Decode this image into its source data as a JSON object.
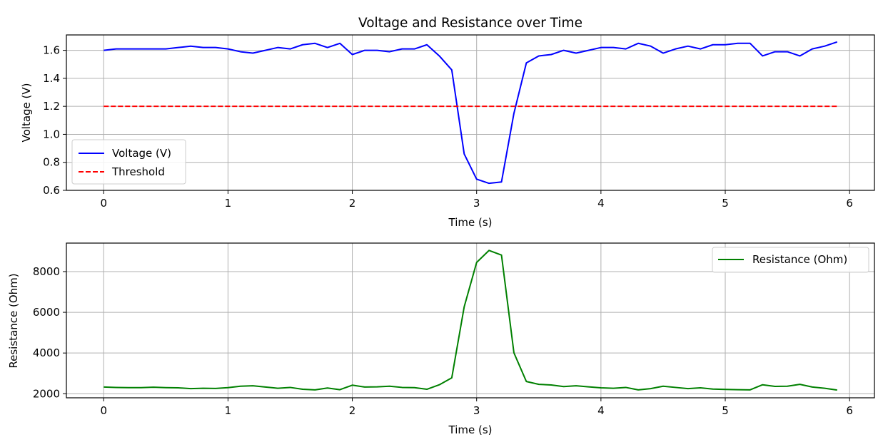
{
  "chart_data": [
    {
      "type": "line",
      "title": "Voltage and Resistance over Time",
      "xlabel": "Time (s)",
      "ylabel": "Voltage (V)",
      "xlim": [
        -0.3,
        6.2
      ],
      "ylim": [
        0.6,
        1.71
      ],
      "xticks": [
        0,
        1,
        2,
        3,
        4,
        5,
        6
      ],
      "yticks": [
        0.6,
        0.8,
        1.0,
        1.2,
        1.4,
        1.6
      ],
      "ytick_labels": [
        "0.6",
        "0.8",
        "1.0",
        "1.2",
        "1.4",
        "1.6"
      ],
      "grid": true,
      "legend_position": "lower-left",
      "x": [
        0.0,
        0.1,
        0.2,
        0.3,
        0.4,
        0.5,
        0.6,
        0.7,
        0.8,
        0.9,
        1.0,
        1.1,
        1.2,
        1.3,
        1.4,
        1.5,
        1.6,
        1.7,
        1.8,
        1.9,
        2.0,
        2.1,
        2.2,
        2.3,
        2.4,
        2.5,
        2.6,
        2.7,
        2.8,
        2.9,
        3.0,
        3.1,
        3.2,
        3.3,
        3.4,
        3.5,
        3.6,
        3.7,
        3.8,
        3.9,
        4.0,
        4.1,
        4.2,
        4.3,
        4.4,
        4.5,
        4.6,
        4.7,
        4.8,
        4.9,
        5.0,
        5.1,
        5.2,
        5.3,
        5.4,
        5.5,
        5.6,
        5.7,
        5.8,
        5.9
      ],
      "series": [
        {
          "name": "Voltage (V)",
          "color": "#0000ff",
          "dash": "solid",
          "values": [
            1.6,
            1.61,
            1.61,
            1.61,
            1.61,
            1.61,
            1.62,
            1.63,
            1.62,
            1.62,
            1.61,
            1.59,
            1.58,
            1.6,
            1.62,
            1.61,
            1.64,
            1.65,
            1.62,
            1.65,
            1.57,
            1.6,
            1.6,
            1.59,
            1.61,
            1.61,
            1.64,
            1.56,
            1.46,
            0.86,
            0.68,
            0.65,
            0.66,
            1.15,
            1.51,
            1.56,
            1.57,
            1.6,
            1.58,
            1.6,
            1.62,
            1.62,
            1.61,
            1.65,
            1.63,
            1.58,
            1.61,
            1.63,
            1.61,
            1.64,
            1.64,
            1.65,
            1.65,
            1.56,
            1.59,
            1.59,
            1.56,
            1.61,
            1.63,
            1.66
          ]
        },
        {
          "name": "Threshold",
          "color": "#ff0000",
          "dash": "dashed",
          "values": [
            1.2,
            1.2,
            1.2,
            1.2,
            1.2,
            1.2,
            1.2,
            1.2,
            1.2,
            1.2,
            1.2,
            1.2,
            1.2,
            1.2,
            1.2,
            1.2,
            1.2,
            1.2,
            1.2,
            1.2,
            1.2,
            1.2,
            1.2,
            1.2,
            1.2,
            1.2,
            1.2,
            1.2,
            1.2,
            1.2,
            1.2,
            1.2,
            1.2,
            1.2,
            1.2,
            1.2,
            1.2,
            1.2,
            1.2,
            1.2,
            1.2,
            1.2,
            1.2,
            1.2,
            1.2,
            1.2,
            1.2,
            1.2,
            1.2,
            1.2,
            1.2,
            1.2,
            1.2,
            1.2,
            1.2,
            1.2,
            1.2,
            1.2,
            1.2,
            1.2
          ]
        }
      ]
    },
    {
      "type": "line",
      "title": "",
      "xlabel": "Time (s)",
      "ylabel": "Resistance (Ohm)",
      "xlim": [
        -0.3,
        6.2
      ],
      "ylim": [
        1800,
        9400
      ],
      "xticks": [
        0,
        1,
        2,
        3,
        4,
        5,
        6
      ],
      "yticks": [
        2000,
        4000,
        6000,
        8000
      ],
      "ytick_labels": [
        "2000",
        "4000",
        "6000",
        "8000"
      ],
      "grid": true,
      "legend_position": "upper-right",
      "x": [
        0.0,
        0.1,
        0.2,
        0.3,
        0.4,
        0.5,
        0.6,
        0.7,
        0.8,
        0.9,
        1.0,
        1.1,
        1.2,
        1.3,
        1.4,
        1.5,
        1.6,
        1.7,
        1.8,
        1.9,
        2.0,
        2.1,
        2.2,
        2.3,
        2.4,
        2.5,
        2.6,
        2.7,
        2.8,
        2.9,
        3.0,
        3.1,
        3.2,
        3.3,
        3.4,
        3.5,
        3.6,
        3.7,
        3.8,
        3.9,
        4.0,
        4.1,
        4.2,
        4.3,
        4.4,
        4.5,
        4.6,
        4.7,
        4.8,
        4.9,
        5.0,
        5.1,
        5.2,
        5.3,
        5.4,
        5.5,
        5.6,
        5.7,
        5.8,
        5.9
      ],
      "series": [
        {
          "name": "Resistance (Ohm)",
          "color": "#008000",
          "dash": "solid",
          "values": [
            2330,
            2310,
            2300,
            2300,
            2320,
            2300,
            2290,
            2250,
            2270,
            2260,
            2300,
            2370,
            2390,
            2330,
            2270,
            2310,
            2220,
            2190,
            2280,
            2200,
            2420,
            2330,
            2340,
            2370,
            2310,
            2300,
            2220,
            2440,
            2780,
            6270,
            8450,
            9040,
            8810,
            4010,
            2600,
            2460,
            2430,
            2350,
            2390,
            2340,
            2290,
            2270,
            2310,
            2190,
            2250,
            2370,
            2310,
            2250,
            2290,
            2230,
            2210,
            2200,
            2190,
            2440,
            2360,
            2370,
            2460,
            2330,
            2270,
            2180
          ]
        }
      ]
    }
  ]
}
